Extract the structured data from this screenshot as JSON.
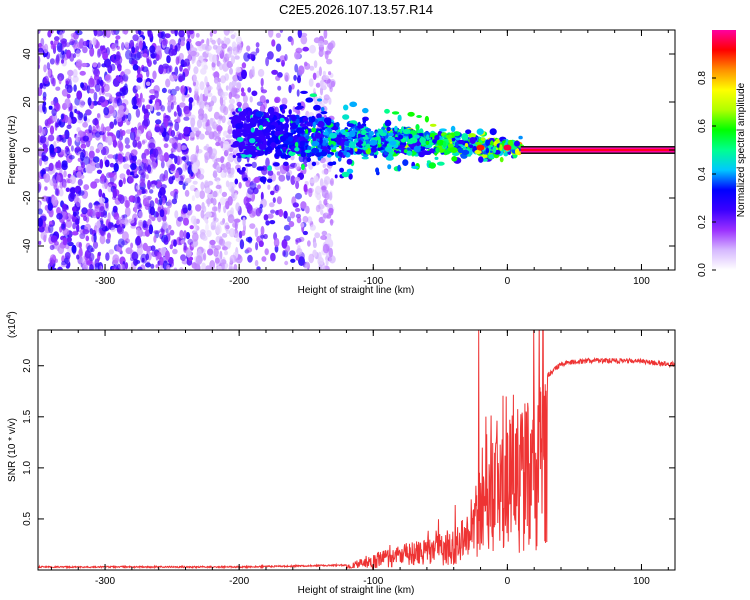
{
  "chart_data": [
    {
      "type": "heatmap",
      "title": "C2E5.2026.107.13.57.R14",
      "xlabel": "Height of straight line (km)",
      "ylabel": "Frequency (Hz)",
      "xlim": [
        -350,
        125
      ],
      "ylim": [
        -50,
        50
      ],
      "xticks": [
        -300,
        -200,
        -100,
        0,
        100
      ],
      "yticks": [
        -40,
        -20,
        0,
        20,
        40
      ],
      "colorbar": {
        "label": "Normalized spectral amplitude",
        "range": [
          0,
          1
        ],
        "ticks": [
          "0.0",
          "0.2",
          "0.4",
          "0.6",
          "0.8"
        ],
        "colors": [
          "#ffffff",
          "#d6b8ff",
          "#9b30ff",
          "#3a00ff",
          "#0000ff",
          "#00c8ff",
          "#00ff90",
          "#00ff00",
          "#b0ff00",
          "#ffff00",
          "#ff9000",
          "#ff0000",
          "#ff00a0"
        ]
      },
      "carrier": {
        "x_start": 10,
        "x_end": 125,
        "freq": 0,
        "amplitude": 1.0
      },
      "features": [
        {
          "x": -200,
          "freq": 10,
          "amplitude": 0.3
        },
        {
          "x": -185,
          "freq": 15,
          "amplitude": 0.35
        },
        {
          "x": -130,
          "freq": 6,
          "amplitude": 0.45
        },
        {
          "x": -100,
          "freq": 3,
          "amplitude": 0.4
        },
        {
          "x": -70,
          "freq": 4,
          "amplitude": 0.5
        },
        {
          "x": -40,
          "freq": 0,
          "amplitude": 0.6
        },
        {
          "x": -20,
          "freq": 1,
          "amplitude": 0.9
        },
        {
          "x": 0,
          "freq": 1,
          "amplitude": 0.95
        }
      ]
    },
    {
      "type": "line",
      "title": "",
      "xlabel": "Height of straight line (km)",
      "ylabel": "SNR (10 * v/v)",
      "multiplier_label": "(x10",
      "multiplier_exp": "4",
      "xlim": [
        -350,
        125
      ],
      "ylim": [
        0,
        23500
      ],
      "xticks": [
        -300,
        -200,
        -100,
        0,
        100
      ],
      "yticks": [
        0.5,
        1.0,
        1.5,
        2.0
      ],
      "series": [
        {
          "name": "SNR",
          "color": "#ee3333",
          "x": [
            -350,
            -300,
            -250,
            -200,
            -150,
            -120,
            -110,
            -100,
            -90,
            -80,
            -70,
            -60,
            -50,
            -40,
            -30,
            -25,
            -20,
            -15,
            -10,
            0,
            10,
            20,
            30,
            40,
            60,
            80,
            100,
            125
          ],
          "y": [
            300,
            300,
            300,
            300,
            400,
            500,
            1000,
            1600,
            2100,
            2500,
            2800,
            3200,
            3600,
            4200,
            5500,
            8000,
            11000,
            12500,
            13000,
            15000,
            16000,
            17500,
            19000,
            20200,
            20500,
            20500,
            20400,
            20100
          ]
        }
      ]
    }
  ]
}
